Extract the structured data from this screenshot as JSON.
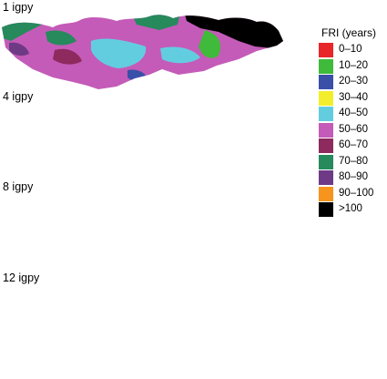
{
  "panels": [
    {
      "label": "1 igpy"
    },
    {
      "label": "4 igpy"
    },
    {
      "label": "8 igpy"
    },
    {
      "label": "12 igpy"
    }
  ],
  "legend": {
    "title": "FRI (years)",
    "items": [
      {
        "label": "0–10",
        "color": "#e8262a"
      },
      {
        "label": "10–20",
        "color": "#3fba3a"
      },
      {
        "label": "20–30",
        "color": "#3a4fa8"
      },
      {
        "label": "30–40",
        "color": "#f3ee2b"
      },
      {
        "label": "40–50",
        "color": "#63cde0"
      },
      {
        "label": "50–60",
        "color": "#c45bb8"
      },
      {
        "label": "60–70",
        "color": "#8e2a5d"
      },
      {
        "label": "70–80",
        "color": "#268a5c"
      },
      {
        "label": "80–90",
        "color": "#6e3a86"
      },
      {
        "label": "90–100",
        "color": "#f7941e"
      },
      {
        "label": ">100",
        "color": "#000000"
      }
    ]
  }
}
